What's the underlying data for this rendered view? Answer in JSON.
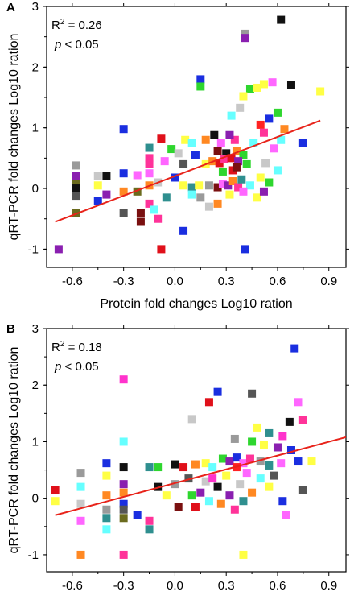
{
  "chart_data": [
    {
      "type": "scatter",
      "panel_label": "A",
      "xlabel": "Protein fold changes Log10 ration",
      "ylabel": "qRT-PCR fold changes Log10 ration",
      "xlim": [
        -0.75,
        1.0
      ],
      "ylim": [
        -1.3,
        3.0
      ],
      "x_ticks": [
        -0.6,
        -0.3,
        0.0,
        0.3,
        0.6,
        0.9
      ],
      "x_tick_labels": [
        "-0.6",
        "-0.3",
        "0.0",
        "0.3",
        "0.6",
        "0.9"
      ],
      "y_ticks": [
        -1,
        0,
        1,
        2,
        3
      ],
      "y_tick_labels": [
        "-1",
        "0",
        "1",
        "2",
        "3"
      ],
      "annotation": {
        "r2_prefix": "R",
        "r2_sup": "2",
        "r2_value": " = 0.26",
        "p_symbol": "p",
        "p_value": " < 0.05"
      },
      "fit_line": {
        "x": [
          -0.7,
          0.85
        ],
        "y": [
          -0.55,
          1.12
        ],
        "color": "#e8231a"
      },
      "points": [
        {
          "x": 0.62,
          "y": 2.78,
          "color": "#111111"
        },
        {
          "x": 0.41,
          "y": 2.55,
          "color": "#9a9a9a"
        },
        {
          "x": 0.41,
          "y": 2.48,
          "color": "#8a1fb0"
        },
        {
          "x": 0.15,
          "y": 1.8,
          "color": "#1a2ee0"
        },
        {
          "x": 0.15,
          "y": 1.68,
          "color": "#2ed62e"
        },
        {
          "x": 0.57,
          "y": 1.75,
          "color": "#ff66ff"
        },
        {
          "x": 0.68,
          "y": 1.7,
          "color": "#111111"
        },
        {
          "x": 0.52,
          "y": 1.72,
          "color": "#ffff44"
        },
        {
          "x": 0.85,
          "y": 1.6,
          "color": "#ffff44"
        },
        {
          "x": 0.44,
          "y": 1.64,
          "color": "#2ed62e"
        },
        {
          "x": 0.48,
          "y": 1.66,
          "color": "#ffff44"
        },
        {
          "x": 0.38,
          "y": 1.33,
          "color": "#c8c8c8"
        },
        {
          "x": 0.4,
          "y": 1.52,
          "color": "#ffff44"
        },
        {
          "x": 0.33,
          "y": 1.2,
          "color": "#66ffff"
        },
        {
          "x": 0.55,
          "y": 1.15,
          "color": "#1a2ee0"
        },
        {
          "x": 0.6,
          "y": 1.25,
          "color": "#2ed62e"
        },
        {
          "x": 0.5,
          "y": 1.05,
          "color": "#ff2222"
        },
        {
          "x": 0.52,
          "y": 0.92,
          "color": "#ff3399"
        },
        {
          "x": 0.64,
          "y": 0.98,
          "color": "#ff8822"
        },
        {
          "x": 0.46,
          "y": 0.75,
          "color": "#66ffff"
        },
        {
          "x": 0.75,
          "y": 0.75,
          "color": "#1a2ee0"
        },
        {
          "x": 0.58,
          "y": 0.66,
          "color": "#ff66ff"
        },
        {
          "x": 0.62,
          "y": 0.8,
          "color": "#66ffff"
        },
        {
          "x": -0.3,
          "y": 0.98,
          "color": "#1a2ee0"
        },
        {
          "x": -0.08,
          "y": 0.82,
          "color": "#e0101a"
        },
        {
          "x": 0.06,
          "y": 0.8,
          "color": "#ffff44"
        },
        {
          "x": 0.1,
          "y": 0.75,
          "color": "#66ffff"
        },
        {
          "x": 0.18,
          "y": 0.8,
          "color": "#ff8822"
        },
        {
          "x": 0.23,
          "y": 0.88,
          "color": "#111111"
        },
        {
          "x": 0.27,
          "y": 0.75,
          "color": "#ff66ff"
        },
        {
          "x": 0.35,
          "y": 0.8,
          "color": "#ff3399"
        },
        {
          "x": 0.32,
          "y": 0.88,
          "color": "#8a1fb0"
        },
        {
          "x": -0.15,
          "y": 0.67,
          "color": "#2f8f8f"
        },
        {
          "x": -0.02,
          "y": 0.65,
          "color": "#2ed62e"
        },
        {
          "x": 0.02,
          "y": 0.58,
          "color": "#c8c8c8"
        },
        {
          "x": 0.12,
          "y": 0.55,
          "color": "#1a2ee0"
        },
        {
          "x": 0.25,
          "y": 0.62,
          "color": "#7a1010"
        },
        {
          "x": 0.3,
          "y": 0.58,
          "color": "#111111"
        },
        {
          "x": 0.36,
          "y": 0.62,
          "color": "#ff8822"
        },
        {
          "x": 0.4,
          "y": 0.55,
          "color": "#2ed62e"
        },
        {
          "x": -0.15,
          "y": 0.5,
          "color": "#ff3399"
        },
        {
          "x": -0.06,
          "y": 0.45,
          "color": "#ff66ff"
        },
        {
          "x": 0.05,
          "y": 0.4,
          "color": "#555555"
        },
        {
          "x": 0.18,
          "y": 0.4,
          "color": "#ffff44"
        },
        {
          "x": 0.22,
          "y": 0.45,
          "color": "#ff8822"
        },
        {
          "x": 0.26,
          "y": 0.42,
          "color": "#e0101a"
        },
        {
          "x": 0.29,
          "y": 0.48,
          "color": "#ff3399"
        },
        {
          "x": 0.33,
          "y": 0.5,
          "color": "#e0101a"
        },
        {
          "x": 0.37,
          "y": 0.45,
          "color": "#8a1fb0"
        },
        {
          "x": 0.42,
          "y": 0.4,
          "color": "#2ed62e"
        },
        {
          "x": 0.53,
          "y": 0.42,
          "color": "#c8c8c8"
        },
        {
          "x": 0.6,
          "y": 0.3,
          "color": "#66ffff"
        },
        {
          "x": -0.15,
          "y": 0.4,
          "color": "#ff3399"
        },
        {
          "x": -0.15,
          "y": 0.25,
          "color": "#ff66ff"
        },
        {
          "x": -0.22,
          "y": 0.22,
          "color": "#ff66ff"
        },
        {
          "x": -0.1,
          "y": 0.1,
          "color": "#c8c8c8"
        },
        {
          "x": 0.0,
          "y": 0.18,
          "color": "#1a2ee0"
        },
        {
          "x": 0.05,
          "y": 0.05,
          "color": "#ffff44"
        },
        {
          "x": 0.1,
          "y": 0.02,
          "color": "#2f8f8f"
        },
        {
          "x": 0.14,
          "y": 0.05,
          "color": "#ffff44"
        },
        {
          "x": 0.2,
          "y": 0.05,
          "color": "#9a9a9a"
        },
        {
          "x": 0.25,
          "y": 0.02,
          "color": "#7a1010"
        },
        {
          "x": 0.28,
          "y": 0.08,
          "color": "#ff66ff"
        },
        {
          "x": 0.31,
          "y": 0.05,
          "color": "#8a1fb0"
        },
        {
          "x": 0.34,
          "y": 0.12,
          "color": "#ff8822"
        },
        {
          "x": 0.37,
          "y": 0.02,
          "color": "#ff3399"
        },
        {
          "x": 0.39,
          "y": 0.15,
          "color": "#2f8f8f"
        },
        {
          "x": 0.44,
          "y": 0.05,
          "color": "#66ffff"
        },
        {
          "x": 0.5,
          "y": 0.18,
          "color": "#ffff44"
        },
        {
          "x": 0.55,
          "y": 0.1,
          "color": "#2ed62e"
        },
        {
          "x": -0.58,
          "y": 0.38,
          "color": "#9a9a9a"
        },
        {
          "x": -0.58,
          "y": 0.2,
          "color": "#8a1fb0"
        },
        {
          "x": -0.58,
          "y": 0.08,
          "color": "#6b6b1e"
        },
        {
          "x": -0.58,
          "y": 0.0,
          "color": "#111111"
        },
        {
          "x": -0.58,
          "y": -0.12,
          "color": "#555555"
        },
        {
          "x": -0.58,
          "y": -0.4,
          "color": "#6b6b1e"
        },
        {
          "x": -0.45,
          "y": 0.2,
          "color": "#c8c8c8"
        },
        {
          "x": -0.45,
          "y": 0.05,
          "color": "#ffff44"
        },
        {
          "x": -0.45,
          "y": -0.2,
          "color": "#1a2ee0"
        },
        {
          "x": -0.4,
          "y": 0.2,
          "color": "#111111"
        },
        {
          "x": -0.4,
          "y": -0.1,
          "color": "#8a1fb0"
        },
        {
          "x": -0.3,
          "y": 0.25,
          "color": "#1a2ee0"
        },
        {
          "x": -0.3,
          "y": -0.05,
          "color": "#ff8822"
        },
        {
          "x": -0.3,
          "y": -0.4,
          "color": "#555555"
        },
        {
          "x": -0.22,
          "y": -0.05,
          "color": "#6b6b1e"
        },
        {
          "x": -0.2,
          "y": -0.4,
          "color": "#7a1010"
        },
        {
          "x": -0.2,
          "y": -0.55,
          "color": "#7a1010"
        },
        {
          "x": -0.15,
          "y": 0.05,
          "color": "#ff8822"
        },
        {
          "x": -0.15,
          "y": -0.25,
          "color": "#ff3399"
        },
        {
          "x": -0.12,
          "y": -0.35,
          "color": "#66ffff"
        },
        {
          "x": -0.1,
          "y": -0.5,
          "color": "#ff3399"
        },
        {
          "x": -0.05,
          "y": -0.15,
          "color": "#2f8f8f"
        },
        {
          "x": 0.05,
          "y": -0.7,
          "color": "#1a2ee0"
        },
        {
          "x": 0.1,
          "y": -0.1,
          "color": "#66ffff"
        },
        {
          "x": 0.15,
          "y": -0.15,
          "color": "#9a9a9a"
        },
        {
          "x": 0.2,
          "y": -0.3,
          "color": "#c8c8c8"
        },
        {
          "x": 0.25,
          "y": -0.25,
          "color": "#ff8822"
        },
        {
          "x": 0.32,
          "y": -0.1,
          "color": "#ffff44"
        },
        {
          "x": 0.4,
          "y": -0.05,
          "color": "#ff66ff"
        },
        {
          "x": 0.48,
          "y": -0.15,
          "color": "#ffff44"
        },
        {
          "x": 0.52,
          "y": -0.05,
          "color": "#8a1fb0"
        },
        {
          "x": -0.68,
          "y": -1.0,
          "color": "#8a1fb0"
        },
        {
          "x": -0.08,
          "y": -1.0,
          "color": "#e0101a"
        },
        {
          "x": 0.41,
          "y": -1.0,
          "color": "#1a2ee0"
        },
        {
          "x": 0.34,
          "y": 0.3,
          "color": "#e0101a"
        },
        {
          "x": 0.36,
          "y": 0.35,
          "color": "#7a1010"
        },
        {
          "x": 0.28,
          "y": 0.28,
          "color": "#2ed62e"
        }
      ]
    },
    {
      "type": "scatter",
      "panel_label": "B",
      "xlabel": "Protein fold changes Log10 ration",
      "ylabel": "qRT-PCR fold changes Log10 ration",
      "xlim": [
        -0.75,
        1.0
      ],
      "ylim": [
        -1.3,
        3.0
      ],
      "x_ticks": [
        -0.6,
        -0.3,
        0.0,
        0.3,
        0.6,
        0.9
      ],
      "x_tick_labels": [
        "-0.6",
        "-0.3",
        "0.0",
        "0.3",
        "0.6",
        "0.9"
      ],
      "y_ticks": [
        -1,
        0,
        1,
        2,
        3
      ],
      "y_tick_labels": [
        "-1",
        "0",
        "1",
        "2",
        "3"
      ],
      "annotation": {
        "r2_prefix": "R",
        "r2_sup": "2",
        "r2_value": " = 0.18",
        "p_symbol": "p",
        "p_value": " < 0.05"
      },
      "fit_line": {
        "x": [
          -0.7,
          1.0
        ],
        "y": [
          -0.3,
          1.08
        ],
        "color": "#e8231a"
      },
      "points": [
        {
          "x": 0.7,
          "y": 2.65,
          "color": "#1a2ee0"
        },
        {
          "x": -0.3,
          "y": 2.1,
          "color": "#ff33cc"
        },
        {
          "x": 0.25,
          "y": 1.88,
          "color": "#1a2ee0"
        },
        {
          "x": 0.45,
          "y": 1.85,
          "color": "#555555"
        },
        {
          "x": 0.2,
          "y": 1.7,
          "color": "#e0101a"
        },
        {
          "x": 0.72,
          "y": 1.7,
          "color": "#ff66ff"
        },
        {
          "x": 0.1,
          "y": 1.4,
          "color": "#c8c8c8"
        },
        {
          "x": 0.75,
          "y": 1.38,
          "color": "#ff3399"
        },
        {
          "x": 0.67,
          "y": 1.35,
          "color": "#111111"
        },
        {
          "x": 0.48,
          "y": 1.25,
          "color": "#ffff44"
        },
        {
          "x": 0.55,
          "y": 1.15,
          "color": "#2f8f8f"
        },
        {
          "x": 0.63,
          "y": 1.1,
          "color": "#ff33cc"
        },
        {
          "x": -0.3,
          "y": 1.0,
          "color": "#66ffff"
        },
        {
          "x": 0.35,
          "y": 1.05,
          "color": "#9a9a9a"
        },
        {
          "x": 0.45,
          "y": 1.0,
          "color": "#2ed62e"
        },
        {
          "x": 0.52,
          "y": 0.95,
          "color": "#ffff44"
        },
        {
          "x": 0.6,
          "y": 0.9,
          "color": "#8a1fb0"
        },
        {
          "x": 0.68,
          "y": 0.85,
          "color": "#1a2ee0"
        },
        {
          "x": -0.4,
          "y": 0.62,
          "color": "#1a2ee0"
        },
        {
          "x": -0.3,
          "y": 0.55,
          "color": "#111111"
        },
        {
          "x": -0.15,
          "y": 0.55,
          "color": "#2f8f8f"
        },
        {
          "x": -0.1,
          "y": 0.55,
          "color": "#2ed62e"
        },
        {
          "x": 0.0,
          "y": 0.6,
          "color": "#111111"
        },
        {
          "x": 0.05,
          "y": 0.55,
          "color": "#e0101a"
        },
        {
          "x": 0.12,
          "y": 0.6,
          "color": "#ff8822"
        },
        {
          "x": 0.18,
          "y": 0.62,
          "color": "#ffff44"
        },
        {
          "x": 0.22,
          "y": 0.55,
          "color": "#66ffff"
        },
        {
          "x": 0.28,
          "y": 0.7,
          "color": "#2ed62e"
        },
        {
          "x": 0.32,
          "y": 0.65,
          "color": "#8a1fb0"
        },
        {
          "x": 0.36,
          "y": 0.72,
          "color": "#1a2ee0"
        },
        {
          "x": 0.4,
          "y": 0.62,
          "color": "#ff66ff"
        },
        {
          "x": 0.44,
          "y": 0.7,
          "color": "#ff3399"
        },
        {
          "x": 0.5,
          "y": 0.65,
          "color": "#9a9a9a"
        },
        {
          "x": 0.55,
          "y": 0.58,
          "color": "#2f8f8f"
        },
        {
          "x": 0.62,
          "y": 0.62,
          "color": "#ff66ff"
        },
        {
          "x": 0.72,
          "y": 0.65,
          "color": "#1a2ee0"
        },
        {
          "x": 0.8,
          "y": 0.65,
          "color": "#ffff44"
        },
        {
          "x": -0.55,
          "y": 0.45,
          "color": "#9a9a9a"
        },
        {
          "x": -0.55,
          "y": 0.2,
          "color": "#66ffff"
        },
        {
          "x": -0.55,
          "y": -0.1,
          "color": "#c8c8c8"
        },
        {
          "x": -0.55,
          "y": -0.4,
          "color": "#ff66ff"
        },
        {
          "x": -0.4,
          "y": 0.4,
          "color": "#ffff44"
        },
        {
          "x": -0.4,
          "y": 0.05,
          "color": "#ff8822"
        },
        {
          "x": -0.4,
          "y": -0.2,
          "color": "#9a9a9a"
        },
        {
          "x": -0.4,
          "y": -0.35,
          "color": "#2f8f8f"
        },
        {
          "x": -0.4,
          "y": -0.55,
          "color": "#66ffff"
        },
        {
          "x": -0.3,
          "y": 0.25,
          "color": "#8a1fb0"
        },
        {
          "x": -0.3,
          "y": 0.1,
          "color": "#ff8822"
        },
        {
          "x": -0.3,
          "y": -0.1,
          "color": "#1a2ee0"
        },
        {
          "x": -0.3,
          "y": -0.2,
          "color": "#555555"
        },
        {
          "x": -0.3,
          "y": -0.35,
          "color": "#6b6b1e"
        },
        {
          "x": -0.22,
          "y": -0.3,
          "color": "#1a2ee0"
        },
        {
          "x": -0.15,
          "y": -0.4,
          "color": "#ff3399"
        },
        {
          "x": -0.15,
          "y": -0.55,
          "color": "#2f8f8f"
        },
        {
          "x": -0.1,
          "y": 0.2,
          "color": "#111111"
        },
        {
          "x": -0.05,
          "y": 0.05,
          "color": "#ffff44"
        },
        {
          "x": 0.0,
          "y": 0.25,
          "color": "#9a9a9a"
        },
        {
          "x": 0.02,
          "y": -0.15,
          "color": "#7a1010"
        },
        {
          "x": 0.08,
          "y": 0.35,
          "color": "#555555"
        },
        {
          "x": 0.1,
          "y": 0.05,
          "color": "#2ed62e"
        },
        {
          "x": 0.12,
          "y": -0.15,
          "color": "#e0101a"
        },
        {
          "x": 0.15,
          "y": 0.1,
          "color": "#8a1fb0"
        },
        {
          "x": 0.18,
          "y": 0.3,
          "color": "#c8c8c8"
        },
        {
          "x": 0.2,
          "y": -0.05,
          "color": "#66ffff"
        },
        {
          "x": 0.25,
          "y": 0.2,
          "color": "#111111"
        },
        {
          "x": 0.27,
          "y": -0.1,
          "color": "#ff8822"
        },
        {
          "x": 0.3,
          "y": 0.4,
          "color": "#ffff44"
        },
        {
          "x": 0.32,
          "y": 0.05,
          "color": "#8a1fb0"
        },
        {
          "x": 0.35,
          "y": -0.2,
          "color": "#ff3399"
        },
        {
          "x": 0.38,
          "y": 0.25,
          "color": "#c8c8c8"
        },
        {
          "x": 0.4,
          "y": -0.05,
          "color": "#2f8f8f"
        },
        {
          "x": 0.42,
          "y": 0.45,
          "color": "#ff66ff"
        },
        {
          "x": 0.45,
          "y": 0.1,
          "color": "#ff8822"
        },
        {
          "x": 0.5,
          "y": 0.35,
          "color": "#66ffff"
        },
        {
          "x": 0.55,
          "y": 0.2,
          "color": "#ffff44"
        },
        {
          "x": 0.58,
          "y": 0.4,
          "color": "#555555"
        },
        {
          "x": 0.63,
          "y": -0.05,
          "color": "#1a2ee0"
        },
        {
          "x": 0.75,
          "y": 0.15,
          "color": "#555555"
        },
        {
          "x": 0.65,
          "y": -0.3,
          "color": "#ff66ff"
        },
        {
          "x": -0.7,
          "y": 0.15,
          "color": "#e0101a"
        },
        {
          "x": -0.7,
          "y": -0.05,
          "color": "#ffff44"
        },
        {
          "x": -0.55,
          "y": -1.0,
          "color": "#ff8822"
        },
        {
          "x": -0.3,
          "y": -1.0,
          "color": "#ff3399"
        },
        {
          "x": 0.4,
          "y": -1.0,
          "color": "#ffff44"
        },
        {
          "x": 0.36,
          "y": 0.55,
          "color": "#ff2222"
        },
        {
          "x": 0.22,
          "y": 0.35,
          "color": "#ff33cc"
        }
      ]
    }
  ]
}
